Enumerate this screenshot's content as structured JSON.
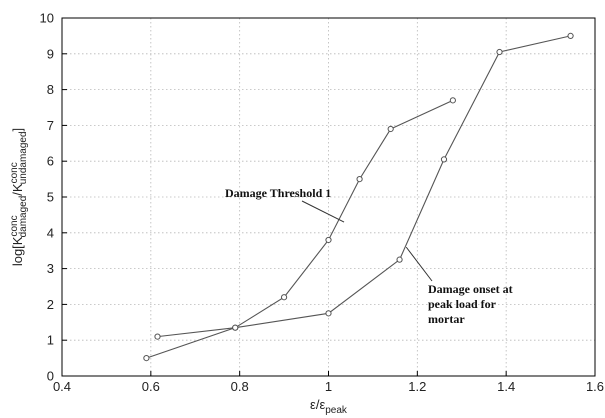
{
  "chart_data": {
    "type": "line",
    "grid": true,
    "xlim": [
      0.4,
      1.6
    ],
    "ylim": [
      0,
      10
    ],
    "xticks": [
      "0.4",
      "0.6",
      "0.8",
      "1",
      "1.2",
      "1.4",
      "1.6"
    ],
    "yticks": [
      "0",
      "1",
      "2",
      "3",
      "4",
      "5",
      "6",
      "7",
      "8",
      "9",
      "10"
    ],
    "xlabel": {
      "main": "ε/ε",
      "sub": "peak"
    },
    "ylabel": {
      "prefix": "log[K",
      "sup1": "conc",
      "sub1": "damaged",
      "mid": "/K",
      "sup2": "conc",
      "sub2": "undamaged",
      "suffix": "]"
    },
    "series": [
      {
        "x": [
          0.59,
          0.79,
          0.9,
          1.0,
          1.07,
          1.14,
          1.28
        ],
        "y": [
          0.5,
          1.35,
          2.2,
          3.8,
          5.5,
          6.9,
          7.7
        ]
      },
      {
        "x": [
          0.615,
          0.79,
          1.0,
          1.16,
          1.26,
          1.385,
          1.545
        ],
        "y": [
          1.1,
          1.35,
          1.75,
          3.25,
          6.05,
          9.05,
          9.5
        ]
      }
    ],
    "annotations": [
      {
        "id": "threshold",
        "lines": [
          "Damage Threshold 1"
        ],
        "point_to": [
          1.035,
          4.3
        ]
      },
      {
        "id": "onset",
        "lines": [
          "Damage onset at",
          "peak load for",
          "mortar"
        ],
        "point_to": [
          1.175,
          3.6
        ]
      }
    ]
  }
}
